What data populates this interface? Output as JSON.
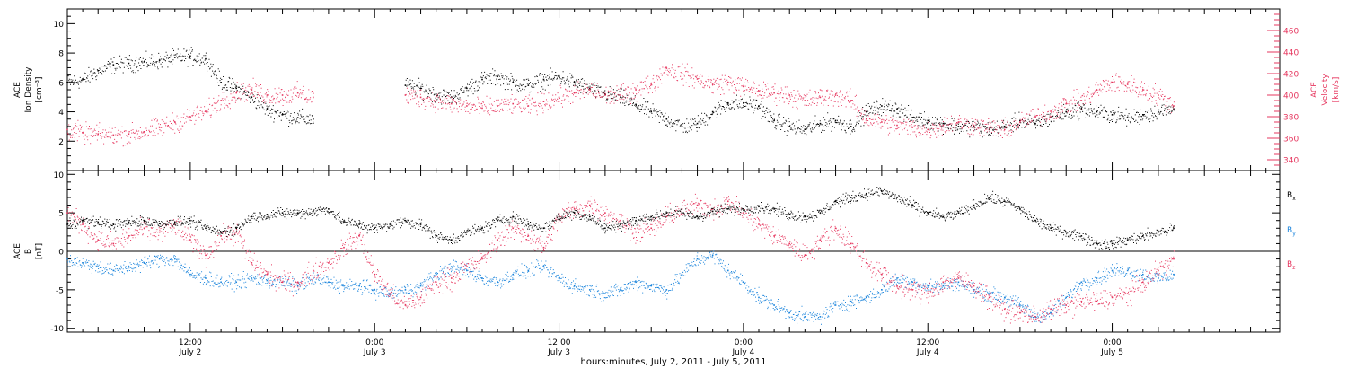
{
  "figure": {
    "xlabel": "hours:minutes, July  2, 2011 - July  5, 2011"
  },
  "chart_data": [
    {
      "type": "scatter",
      "panel": "top",
      "ylabel_left": [
        "ACE",
        "Ion Density",
        "[cm⁻³]"
      ],
      "ylabel_right": [
        "ACE",
        "Velocity",
        "[km/s]"
      ],
      "x_range_hours": [
        0,
        72
      ],
      "ylim_left": [
        0,
        11
      ],
      "yticks_left": [
        2,
        4,
        6,
        8,
        10
      ],
      "ylim_right": [
        330,
        480
      ],
      "yticks_right": [
        340,
        360,
        380,
        400,
        420,
        440,
        460
      ],
      "colors": {
        "density": "#000000",
        "velocity": "#e6375f"
      },
      "series": [
        {
          "name": "Ion Density",
          "axis": "left",
          "color": "#000000",
          "x": [
            0,
            1,
            2,
            3,
            4,
            5,
            6,
            7,
            8,
            9,
            10,
            11,
            12,
            13,
            14,
            15,
            16,
            17,
            18,
            19,
            20,
            21,
            22,
            23,
            24,
            25,
            26,
            27,
            28,
            29,
            30,
            31,
            32,
            33,
            34,
            35,
            36,
            37,
            38,
            39,
            40,
            41,
            42,
            43,
            44,
            45,
            46,
            47,
            48,
            49,
            50,
            51,
            52,
            53,
            54,
            55,
            56,
            57,
            58,
            59,
            60,
            61,
            62,
            63,
            64,
            65,
            66,
            67,
            68,
            69,
            70,
            71,
            72
          ],
          "y": [
            6.0,
            6.2,
            6.8,
            7.2,
            7.3,
            7.4,
            7.5,
            7.7,
            7.8,
            7.6,
            6.0,
            5.6,
            5.0,
            4.2,
            3.8,
            3.6,
            3.5,
            null,
            null,
            null,
            null,
            null,
            5.8,
            5.6,
            5.2,
            5.0,
            5.6,
            6.2,
            6.4,
            6.0,
            5.8,
            6.2,
            6.4,
            6.0,
            5.6,
            5.2,
            5.0,
            4.5,
            4.0,
            3.5,
            3.0,
            3.2,
            4.0,
            4.6,
            4.6,
            4.4,
            3.4,
            3.0,
            2.8,
            3.2,
            3.4,
            3.0,
            4.0,
            4.4,
            4.2,
            3.6,
            3.4,
            3.2,
            3.0,
            3.0,
            2.8,
            3.0,
            3.4,
            3.2,
            3.6,
            4.0,
            4.2,
            4.0,
            3.8,
            3.6,
            3.8,
            4.0,
            4.2
          ]
        },
        {
          "name": "Velocity",
          "axis": "right",
          "color": "#e6375f",
          "x": [
            0,
            1,
            2,
            3,
            4,
            5,
            6,
            7,
            8,
            9,
            10,
            11,
            12,
            13,
            14,
            15,
            16,
            17,
            18,
            19,
            20,
            21,
            22,
            23,
            24,
            25,
            26,
            27,
            28,
            29,
            30,
            31,
            32,
            33,
            34,
            35,
            36,
            37,
            38,
            39,
            40,
            41,
            42,
            43,
            44,
            45,
            46,
            47,
            48,
            49,
            50,
            51,
            52,
            53,
            54,
            55,
            56,
            57,
            58,
            59,
            60,
            61,
            62,
            63,
            64,
            65,
            66,
            67,
            68,
            69,
            70,
            71,
            72
          ],
          "y": [
            368,
            365,
            364,
            363,
            364,
            366,
            370,
            375,
            380,
            385,
            395,
            402,
            405,
            400,
            400,
            402,
            398,
            null,
            null,
            null,
            null,
            null,
            400,
            398,
            395,
            392,
            390,
            388,
            390,
            392,
            390,
            394,
            398,
            402,
            405,
            400,
            400,
            405,
            410,
            425,
            420,
            415,
            410,
            412,
            408,
            404,
            402,
            400,
            395,
            398,
            400,
            395,
            378,
            375,
            372,
            370,
            368,
            372,
            375,
            372,
            370,
            368,
            375,
            380,
            385,
            392,
            395,
            405,
            412,
            410,
            405,
            400,
            390
          ]
        }
      ]
    },
    {
      "type": "scatter",
      "panel": "bottom",
      "ylabel_left": [
        "ACE",
        "B",
        "[nT]"
      ],
      "x_range_hours": [
        0,
        72
      ],
      "ylim": [
        -10.5,
        10.5
      ],
      "yticks": [
        -10,
        -5,
        0,
        5,
        10
      ],
      "zero_line": true,
      "colors": {
        "Bx": "#000000",
        "By": "#1a84dc",
        "Bz": "#e6375f"
      },
      "legend": [
        {
          "main": "B",
          "sub": "x",
          "color": "#000000"
        },
        {
          "main": "B",
          "sub": "y",
          "color": "#1a84dc"
        },
        {
          "main": "B",
          "sub": "z",
          "color": "#e6375f"
        }
      ],
      "series": [
        {
          "name": "Bx",
          "color": "#000000",
          "x": [
            0,
            1,
            2,
            3,
            4,
            5,
            6,
            7,
            8,
            9,
            10,
            11,
            12,
            13,
            14,
            15,
            16,
            17,
            18,
            19,
            20,
            21,
            22,
            23,
            24,
            25,
            26,
            27,
            28,
            29,
            30,
            31,
            32,
            33,
            34,
            35,
            36,
            37,
            38,
            39,
            40,
            41,
            42,
            43,
            44,
            45,
            46,
            47,
            48,
            49,
            50,
            51,
            52,
            53,
            54,
            55,
            56,
            57,
            58,
            59,
            60,
            61,
            62,
            63,
            64,
            65,
            66,
            67,
            68,
            69,
            70,
            71,
            72
          ],
          "y": [
            3.5,
            4.0,
            3.8,
            3.5,
            3.8,
            4.0,
            3.6,
            3.8,
            4.0,
            3.0,
            2.5,
            3.0,
            4.5,
            4.8,
            5.0,
            5.0,
            5.2,
            5.5,
            3.8,
            3.5,
            3.0,
            3.5,
            4.0,
            3.5,
            2.0,
            1.5,
            2.5,
            3.0,
            4.0,
            4.5,
            3.5,
            3.0,
            4.5,
            5.0,
            4.5,
            3.0,
            3.5,
            4.0,
            4.5,
            5.0,
            5.0,
            4.5,
            5.2,
            5.5,
            5.5,
            5.8,
            5.5,
            4.8,
            4.5,
            5.0,
            6.5,
            7.0,
            7.5,
            7.8,
            7.0,
            6.0,
            5.0,
            4.5,
            5.0,
            6.0,
            7.0,
            6.5,
            5.5,
            4.0,
            3.0,
            2.5,
            2.0,
            1.0,
            1.0,
            1.5,
            2.0,
            2.5,
            3.0
          ]
        },
        {
          "name": "By",
          "color": "#1a84dc",
          "x": [
            0,
            1,
            2,
            3,
            4,
            5,
            6,
            7,
            8,
            9,
            10,
            11,
            12,
            13,
            14,
            15,
            16,
            17,
            18,
            19,
            20,
            21,
            22,
            23,
            24,
            25,
            26,
            27,
            28,
            29,
            30,
            31,
            32,
            33,
            34,
            35,
            36,
            37,
            38,
            39,
            40,
            41,
            42,
            43,
            44,
            45,
            46,
            47,
            48,
            49,
            50,
            51,
            52,
            53,
            54,
            55,
            56,
            57,
            58,
            59,
            60,
            61,
            62,
            63,
            64,
            65,
            66,
            67,
            68,
            69,
            70,
            71,
            72
          ],
          "y": [
            -1.0,
            -1.5,
            -2.0,
            -2.5,
            -2.0,
            -1.5,
            -1.0,
            -1.0,
            -3.0,
            -3.5,
            -4.0,
            -4.0,
            -3.5,
            -3.8,
            -4.0,
            -4.5,
            -3.5,
            -4.0,
            -4.5,
            -4.5,
            -5.0,
            -5.5,
            -5.0,
            -4.5,
            -3.0,
            -2.0,
            -2.5,
            -3.5,
            -4.0,
            -3.0,
            -2.5,
            -2.0,
            -3.5,
            -4.5,
            -5.0,
            -5.5,
            -5.0,
            -4.0,
            -4.5,
            -5.0,
            -3.0,
            -1.0,
            -0.5,
            -2.5,
            -4.0,
            -6.0,
            -7.0,
            -8.0,
            -8.5,
            -8.5,
            -7.0,
            -6.5,
            -6.0,
            -5.0,
            -3.5,
            -4.0,
            -4.5,
            -4.5,
            -4.0,
            -5.0,
            -5.5,
            -6.0,
            -7.0,
            -8.5,
            -8.0,
            -6.0,
            -4.0,
            -3.5,
            -2.5,
            -2.5,
            -3.0,
            -3.5,
            -3.0
          ]
        },
        {
          "name": "Bz",
          "color": "#e6375f",
          "x": [
            0,
            1,
            2,
            3,
            4,
            5,
            6,
            7,
            8,
            9,
            10,
            11,
            12,
            13,
            14,
            15,
            16,
            17,
            18,
            19,
            20,
            21,
            22,
            23,
            24,
            25,
            26,
            27,
            28,
            29,
            30,
            31,
            32,
            33,
            34,
            35,
            36,
            37,
            38,
            39,
            40,
            41,
            42,
            43,
            44,
            45,
            46,
            47,
            48,
            49,
            50,
            51,
            52,
            53,
            54,
            55,
            56,
            57,
            58,
            59,
            60,
            61,
            62,
            63,
            64,
            65,
            66,
            67,
            68,
            69,
            70,
            71,
            72
          ],
          "y": [
            5.0,
            3.5,
            1.5,
            1.0,
            2.0,
            3.0,
            2.5,
            3.5,
            1.5,
            -0.5,
            2.0,
            2.5,
            -1.5,
            -3.0,
            -4.0,
            -4.0,
            -2.5,
            -1.5,
            0.5,
            2.0,
            -3.0,
            -5.5,
            -7.0,
            -6.0,
            -4.0,
            -3.5,
            -2.0,
            -1.0,
            1.5,
            3.0,
            2.0,
            0.5,
            4.5,
            5.5,
            6.0,
            5.0,
            4.0,
            2.5,
            3.0,
            4.5,
            5.5,
            6.0,
            5.5,
            6.5,
            5.0,
            3.5,
            2.0,
            1.0,
            -0.5,
            1.5,
            3.0,
            1.0,
            -1.5,
            -3.0,
            -4.5,
            -5.0,
            -5.5,
            -4.0,
            -3.5,
            -4.5,
            -6.0,
            -7.5,
            -8.0,
            -8.5,
            -7.5,
            -7.0,
            -6.5,
            -6.5,
            -6.0,
            -5.5,
            -4.0,
            -2.5,
            -1.0
          ]
        }
      ]
    }
  ],
  "x_axis": {
    "hour_offset_of_first_major": 8,
    "major_ticks": [
      {
        "hours": 8,
        "time": "12:00",
        "date": "July 2"
      },
      {
        "hours": 20,
        "time": "0:00",
        "date": "July 3"
      },
      {
        "hours": 32,
        "time": "12:00",
        "date": "July 3"
      },
      {
        "hours": 44,
        "time": "0:00",
        "date": "July 4"
      },
      {
        "hours": 56,
        "time": "12:00",
        "date": "July 4"
      },
      {
        "hours": 68,
        "time": "0:00",
        "date": "July 5"
      }
    ]
  }
}
